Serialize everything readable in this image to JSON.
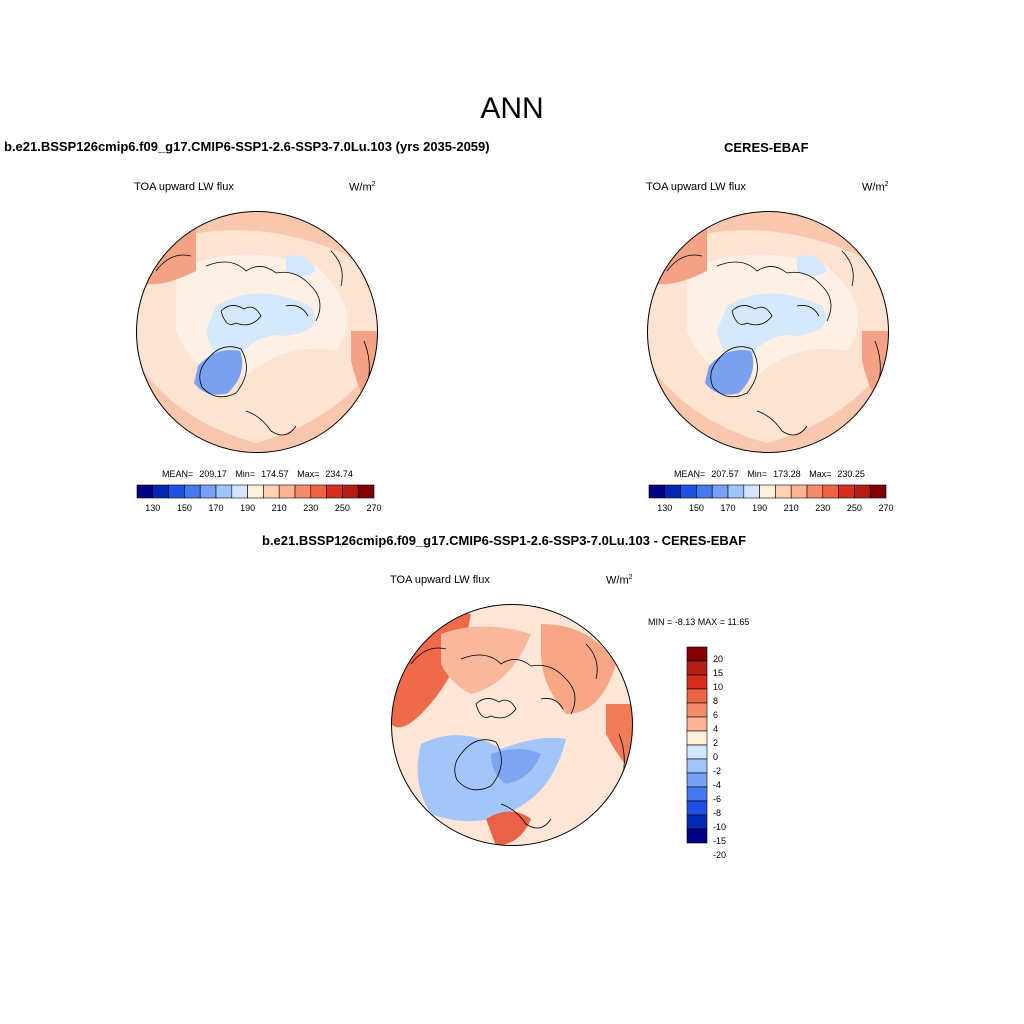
{
  "title": "ANN",
  "variable_label": "TOA upward LW flux",
  "units_base": "W/m",
  "units_exp": "2",
  "colors": {
    "scale": [
      "#000082",
      "#0028b4",
      "#1e50e6",
      "#4678f0",
      "#78a0f5",
      "#a0c3fa",
      "#d2e6ff",
      "#fff0dc",
      "#ffd2b4",
      "#fab496",
      "#f58c6e",
      "#f06446",
      "#d72d1e",
      "#b41e14",
      "#820000"
    ],
    "ocean_light": "#fde3d2",
    "ocean_mid": "#f9c7ad",
    "ocean_warm": "#f3a285",
    "ice": "#d6e8fb",
    "greenland": "#7aa0f0"
  },
  "panels": {
    "test": {
      "title": "b.e21.BSSP126cmip6.f09_g17.CMIP6-SSP1-2.6-SSP3-7.0Lu.103 (yrs 2035-2059)",
      "stats": {
        "mean_label": "MEAN=",
        "mean": "209.17",
        "min_label": "Min=",
        "min": "174.57",
        "max_label": "Max=",
        "max": "234.74"
      }
    },
    "obs": {
      "title": "CERES-EBAF",
      "stats": {
        "mean_label": "MEAN=",
        "mean": "207.57",
        "min_label": "Min=",
        "min": "173.28",
        "max_label": "Max=",
        "max": "230.25"
      }
    },
    "diff": {
      "title": "b.e21.BSSP126cmip6.f09_g17.CMIP6-SSP1-2.6-SSP3-7.0Lu.103 - CERES-EBAF",
      "minmax_text": "MIN =  -8.13 MAX =  11.65"
    }
  },
  "colorbar_abs": {
    "tick_labels": [
      "130",
      "150",
      "170",
      "190",
      "210",
      "230",
      "250",
      "270"
    ]
  },
  "colorbar_diff": {
    "labels": [
      "20",
      "15",
      "10",
      "8",
      "6",
      "4",
      "2",
      "0",
      "-2",
      "-4",
      "-6",
      "-8",
      "-10",
      "-15",
      "-20"
    ],
    "colors": [
      "#820000",
      "#b41e14",
      "#d72d1e",
      "#f06446",
      "#f58c6e",
      "#fab496",
      "#fff0dc",
      "#d2e6ff",
      "#a0c3fa",
      "#78a0f5",
      "#4678f0",
      "#1e50e6",
      "#0028b4",
      "#000082"
    ]
  }
}
